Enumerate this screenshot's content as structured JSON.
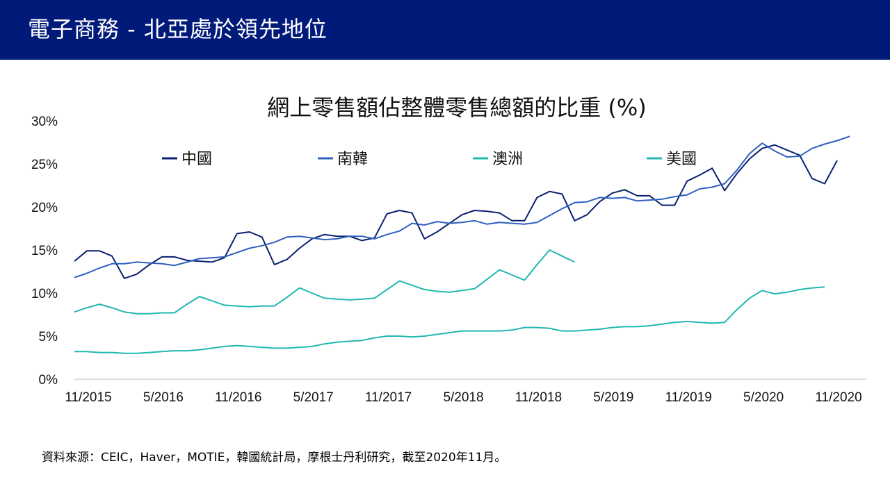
{
  "header": {
    "title": "電子商務 - 北亞處於領先地位"
  },
  "source_note": "資料來源：CEIC，Haver，MOTIE，韓國統計局，摩根士丹利研究，截至2020年11月。",
  "colors": {
    "header_bg": "#001a7a",
    "china": "#0a1f6e",
    "korea": "#2f5fbf",
    "australia": "#20b8b0",
    "usa": "#20b8b0"
  },
  "chart_data": {
    "type": "line",
    "title": "網上零售額佔整體零售總額的比重 (%)",
    "xlabel": "",
    "ylabel": "",
    "ylim": [
      0,
      30
    ],
    "yticks": [
      "0%",
      "5%",
      "10%",
      "15%",
      "20%",
      "25%",
      "30%"
    ],
    "grid": false,
    "legend_position": "top",
    "x_start": "10/2015",
    "x_ticks": [
      {
        "label": "11/2015",
        "index": 1
      },
      {
        "label": "5/2016",
        "index": 7
      },
      {
        "label": "11/2016",
        "index": 13
      },
      {
        "label": "5/2017",
        "index": 19
      },
      {
        "label": "11/2017",
        "index": 25
      },
      {
        "label": "5/2018",
        "index": 31
      },
      {
        "label": "11/2018",
        "index": 37
      },
      {
        "label": "5/2019",
        "index": 43
      },
      {
        "label": "11/2019",
        "index": 49
      },
      {
        "label": "5/2020",
        "index": 55
      },
      {
        "label": "11/2020",
        "index": 61
      }
    ],
    "series": [
      {
        "name": "中國",
        "color": "#0a1f6e",
        "start": 0,
        "values": [
          13.7,
          14.9,
          14.9,
          14.3,
          11.7,
          12.2,
          13.3,
          14.2,
          14.2,
          13.8,
          13.7,
          13.6,
          14.1,
          16.9,
          17.1,
          16.5,
          13.3,
          13.9,
          15.2,
          16.3,
          16.8,
          16.6,
          16.6,
          16.1,
          16.4,
          19.2,
          19.6,
          19.3,
          16.3,
          17.1,
          18.1,
          19.1,
          19.6,
          19.5,
          19.3,
          18.4,
          18.4,
          21.1,
          21.8,
          21.5,
          18.4,
          19.1,
          20.6,
          21.6,
          22.0,
          21.3,
          21.3,
          20.2,
          20.2,
          23.0,
          23.7,
          24.5,
          21.9,
          23.9,
          25.6,
          26.8,
          27.2,
          26.6,
          26.0,
          23.3,
          22.7,
          25.4
        ]
      },
      {
        "name": "南韓",
        "color": "#2f5fbf",
        "start": 0,
        "values": [
          11.8,
          12.3,
          12.9,
          13.4,
          13.4,
          13.6,
          13.5,
          13.4,
          13.2,
          13.6,
          14.0,
          14.1,
          14.2,
          14.7,
          15.2,
          15.5,
          15.9,
          16.5,
          16.6,
          16.4,
          16.2,
          16.3,
          16.6,
          16.6,
          16.3,
          16.8,
          17.2,
          18.1,
          17.9,
          18.3,
          18.1,
          18.2,
          18.4,
          18.0,
          18.2,
          18.1,
          18.0,
          18.2,
          19.0,
          19.8,
          20.5,
          20.6,
          21.1,
          21.0,
          21.1,
          20.7,
          20.8,
          20.9,
          21.2,
          21.4,
          22.1,
          22.3,
          22.7,
          24.3,
          26.2,
          27.4,
          26.5,
          25.8,
          25.9,
          26.8,
          27.3,
          27.7,
          28.2
        ]
      },
      {
        "name": "澳洲",
        "color": "#20b8b0",
        "start": 0,
        "values": [
          7.8,
          8.3,
          8.7,
          8.3,
          7.8,
          7.6,
          7.6,
          7.7,
          7.7,
          8.7,
          9.6,
          9.1,
          8.6,
          8.5,
          8.4,
          8.5,
          8.5,
          9.5,
          10.6,
          10.0,
          9.4,
          9.3,
          9.2,
          9.3,
          9.4,
          10.4,
          11.4,
          10.9,
          10.4,
          10.2,
          10.1,
          10.3,
          10.5,
          11.6,
          12.7,
          12.1,
          11.5,
          13.3,
          15.0,
          14.3,
          13.6
        ]
      },
      {
        "name": "美國",
        "color": "#20b8b0",
        "start": 0,
        "values": [
          3.2,
          3.2,
          3.1,
          3.1,
          3.0,
          3.0,
          3.1,
          3.2,
          3.3,
          3.3,
          3.4,
          3.6,
          3.8,
          3.9,
          3.8,
          3.7,
          3.6,
          3.6,
          3.7,
          3.8,
          4.1,
          4.3,
          4.4,
          4.5,
          4.8,
          5.0,
          5.0,
          4.9,
          5.0,
          5.2,
          5.4,
          5.6,
          5.6,
          5.6,
          5.6,
          5.7,
          6.0,
          6.0,
          5.9,
          5.6,
          5.6,
          5.7,
          5.8,
          6.0,
          6.1,
          6.1,
          6.2,
          6.4,
          6.6,
          6.7,
          6.6,
          6.5,
          6.6,
          8.1,
          9.4,
          10.3,
          9.9,
          10.1,
          10.4,
          10.6,
          10.7
        ]
      }
    ]
  }
}
